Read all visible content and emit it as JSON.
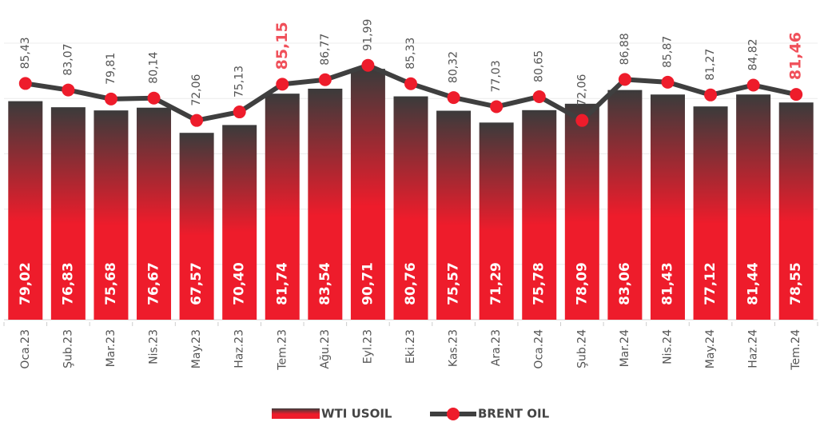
{
  "chart_data": {
    "type": "bar_line",
    "categories": [
      "Oca.23",
      "Şub.23",
      "Mar.23",
      "Nis.23",
      "May.23",
      "Haz.23",
      "Tem.23",
      "Ağu.23",
      "Eyl.23",
      "Eki.23",
      "Kas.23",
      "Ara.23",
      "Oca.24",
      "Şub.24",
      "Mar.24",
      "Nis.24",
      "May.24",
      "Haz.24",
      "Tem.24"
    ],
    "series": [
      {
        "name": "WTI USOIL",
        "type": "bar",
        "color": [
          "#3b3b3b",
          "#ee1c2b"
        ],
        "values": [
          79.02,
          76.83,
          75.68,
          76.67,
          67.57,
          70.4,
          81.74,
          83.54,
          90.71,
          80.76,
          75.57,
          71.29,
          75.78,
          78.09,
          83.06,
          81.43,
          77.12,
          81.44,
          78.55
        ],
        "value_labels": [
          "79,02",
          "76,83",
          "75,68",
          "76,67",
          "67,57",
          "70,40",
          "81,74",
          "83,54",
          "90,71",
          "80,76",
          "75,57",
          "71,29",
          "75,78",
          "78,09",
          "83,06",
          "81,43",
          "77,12",
          "81,44",
          "78,55"
        ]
      },
      {
        "name": "BRENT OIL",
        "type": "line",
        "color": "#3f3f3f",
        "marker_color": "#ee1c2b",
        "values": [
          85.43,
          83.07,
          79.81,
          80.14,
          72.06,
          75.13,
          85.15,
          86.77,
          91.99,
          85.33,
          80.32,
          77.03,
          80.65,
          72.06,
          86.88,
          85.87,
          81.27,
          84.82,
          81.46
        ],
        "value_labels": [
          "85,43",
          "83,07",
          "79,81",
          "80,14",
          "72,06",
          "75,13",
          "85,15",
          "86,77",
          "91,99",
          "85,33",
          "80,32",
          "77,03",
          "80,65",
          "72,06",
          "86,88",
          "85,87",
          "81,27",
          "84,82",
          "81,46"
        ],
        "highlight": [
          6,
          18
        ],
        "highlight_color": "#f0505a"
      }
    ],
    "ylim": [
      0,
      100
    ],
    "yticks": [
      0,
      20,
      40,
      60,
      80,
      100
    ],
    "grid": true,
    "legend": "bottom"
  }
}
